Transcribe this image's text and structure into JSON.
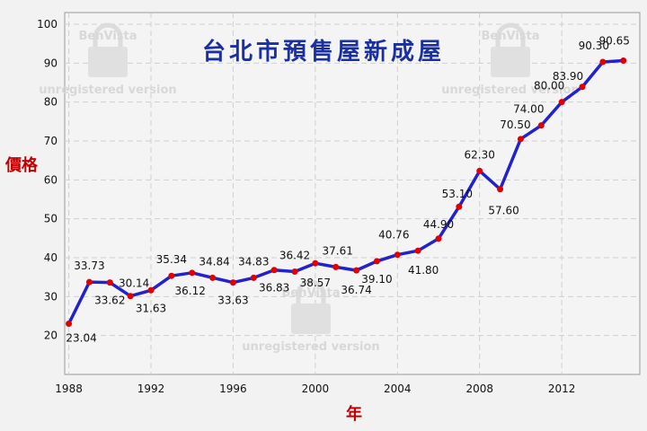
{
  "chart_data": {
    "type": "line",
    "title": "台北市預售屋新成屋",
    "xlabel": "年",
    "ylabel": "價格",
    "x": [
      1988,
      1989,
      1990,
      1991,
      1992,
      1993,
      1994,
      1995,
      1996,
      1997,
      1998,
      1999,
      2000,
      2001,
      2002,
      2003,
      2004,
      2005,
      2006,
      2007,
      2008,
      2009,
      2010,
      2011,
      2012,
      2013,
      2014,
      2015
    ],
    "series": [
      {
        "values": [
          23.04,
          33.73,
          33.62,
          30.14,
          31.63,
          35.34,
          36.12,
          34.84,
          33.63,
          34.83,
          36.83,
          36.42,
          38.57,
          37.61,
          36.74,
          39.1,
          40.76,
          41.8,
          44.9,
          53.1,
          62.3,
          57.6,
          70.5,
          74.0,
          80.0,
          83.9,
          90.3,
          90.65
        ],
        "labels": [
          "23.04",
          "33.73",
          "33.62",
          "30.14",
          "31.63",
          "35.34",
          "36.12",
          "34.84",
          "33.63",
          "34.83",
          "36.83",
          "36.42",
          "38.57",
          "37.61",
          "36.74",
          "39.10",
          "40.76",
          "41.80",
          "44.90",
          "53.10",
          "62.30",
          "57.60",
          "70.50",
          "74.00",
          "80.00",
          "83.90",
          "90.30",
          "90.65"
        ],
        "line_color": "#2222cc",
        "marker_color": "#e00000"
      }
    ],
    "xlim": [
      1987.8,
      2015.8
    ],
    "ylim": [
      10,
      103
    ],
    "x_ticks": [
      "1988",
      "1992",
      "1996",
      "2000",
      "2004",
      "2008",
      "2012"
    ],
    "y_ticks": [
      "20",
      "30",
      "40",
      "50",
      "60",
      "70",
      "80",
      "90",
      "100"
    ],
    "grid": true,
    "legend": "none"
  },
  "watermark": {
    "brand": "BenVista",
    "text": "unregistered version"
  }
}
